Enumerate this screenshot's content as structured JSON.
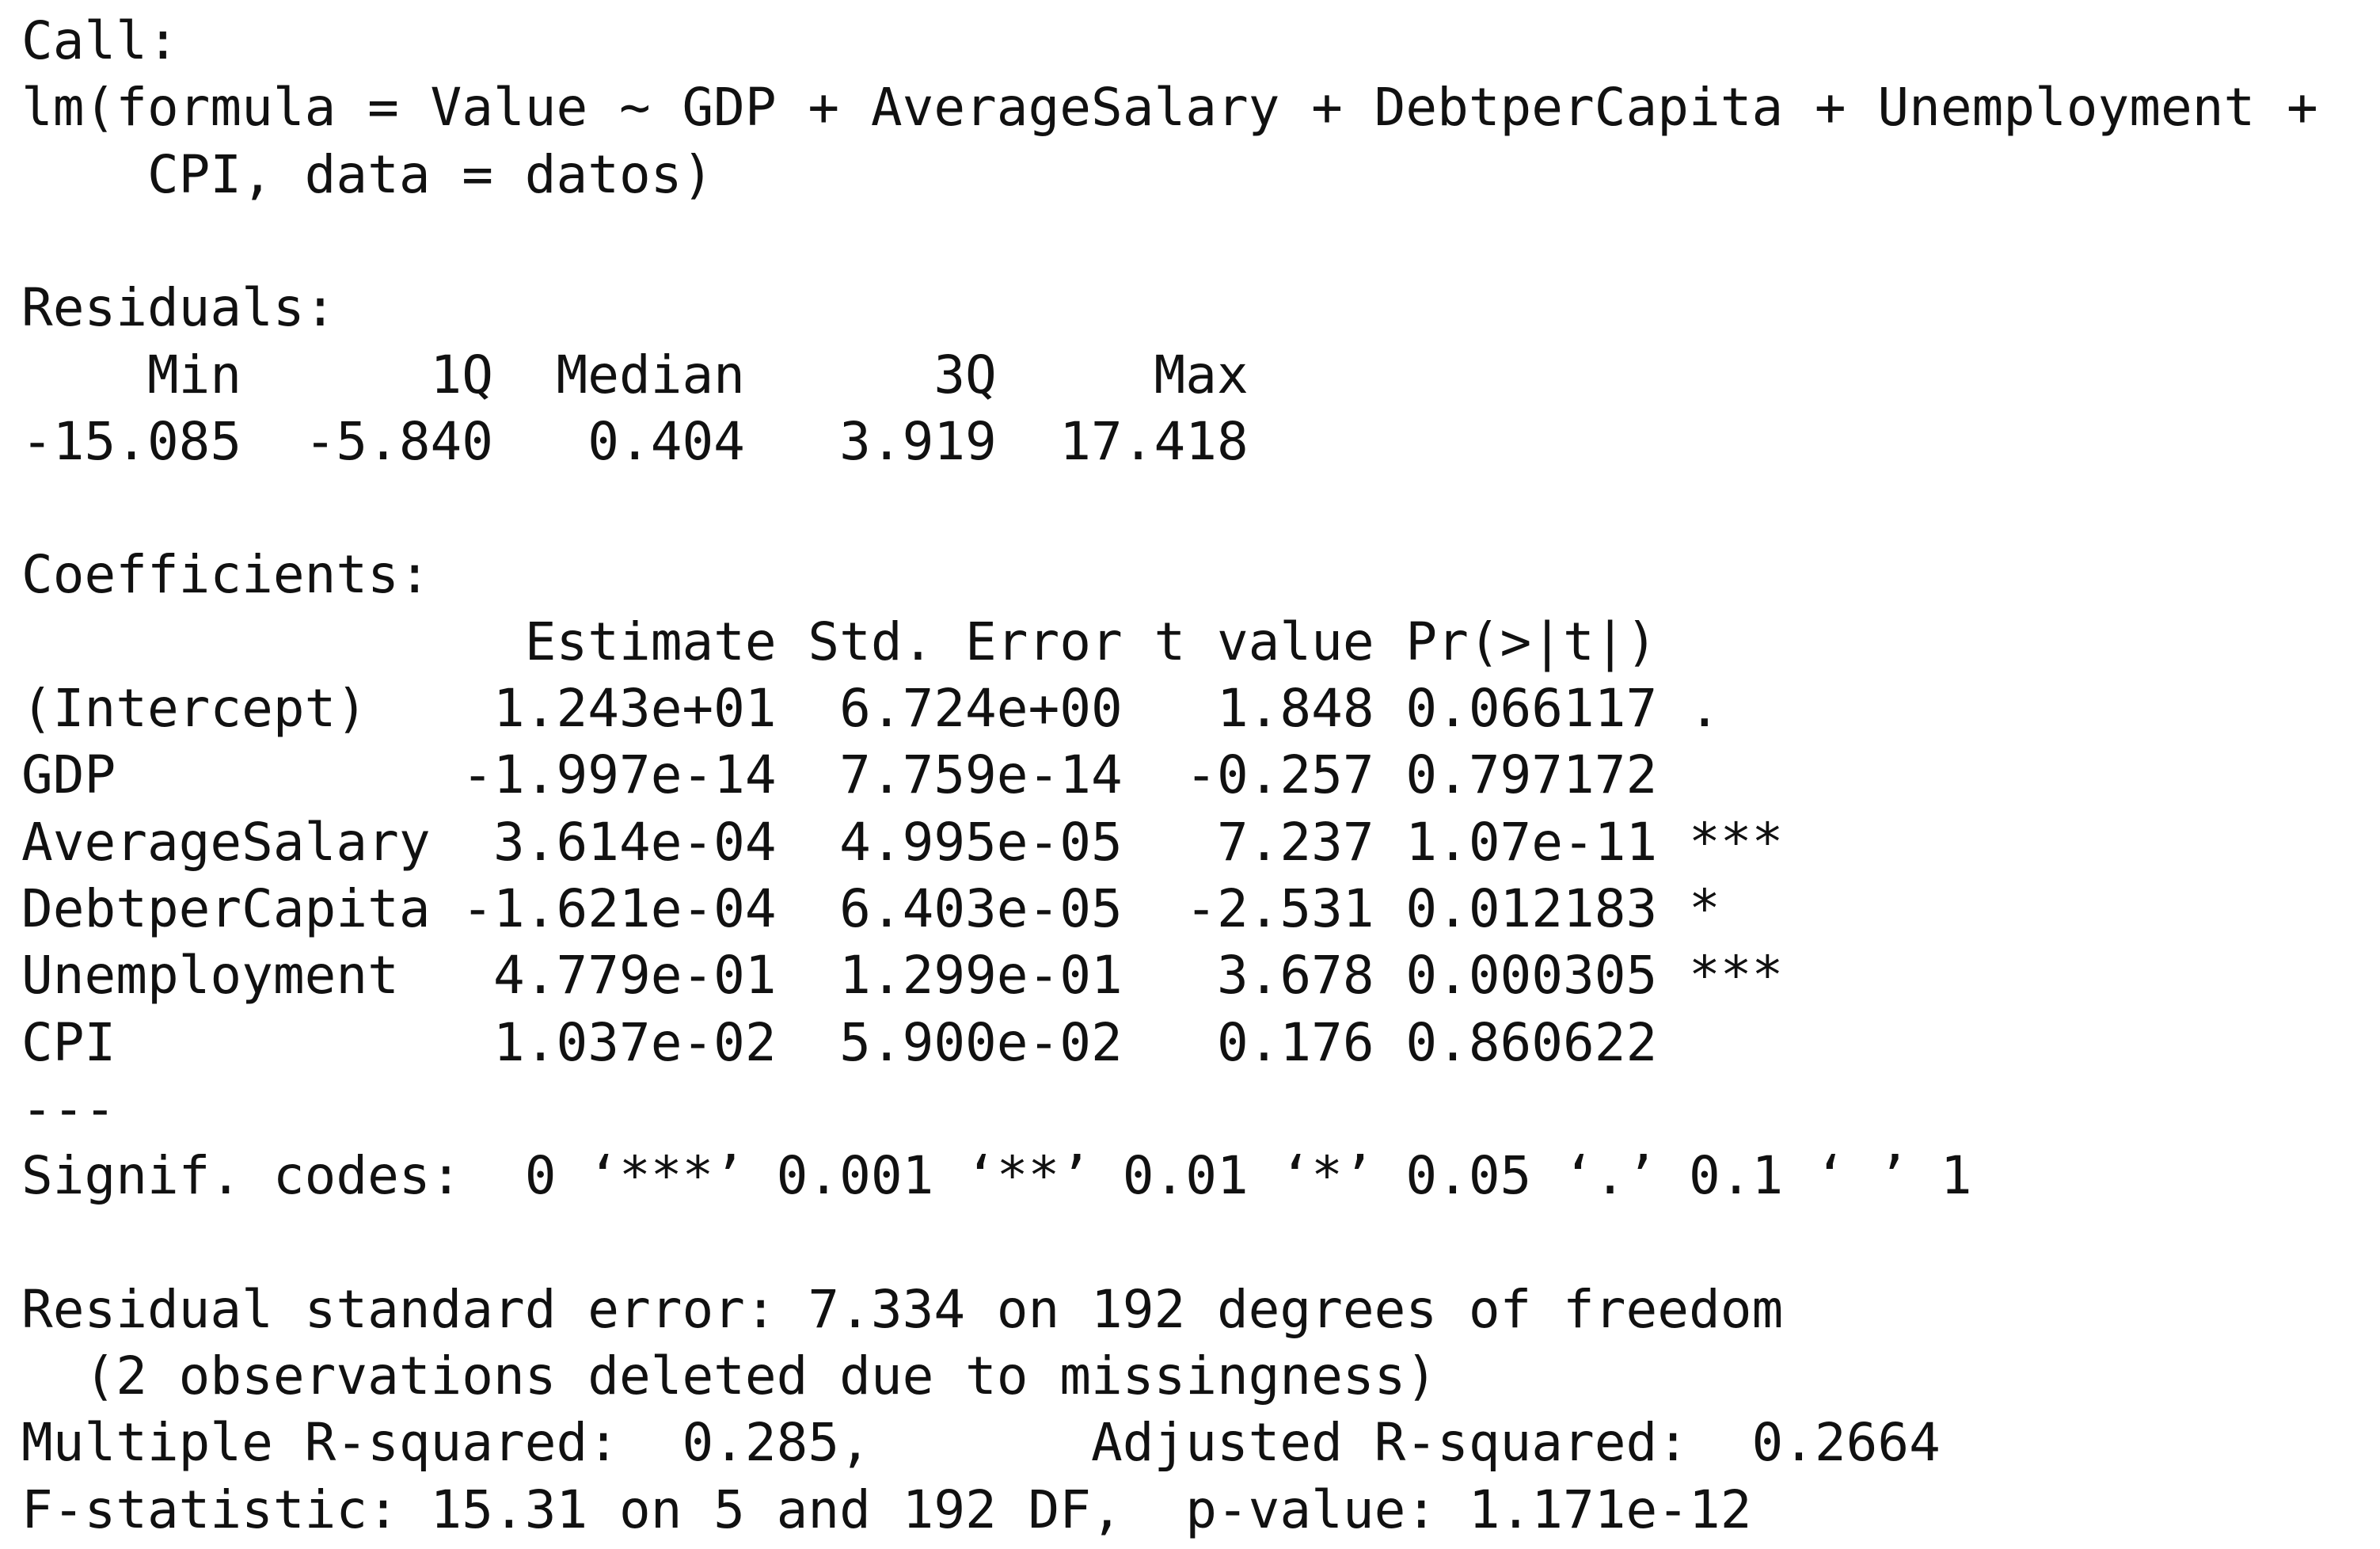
{
  "call": {
    "label": "Call:",
    "lines": [
      "lm(formula = Value ~ GDP + AverageSalary + DebtperCapita + Unemployment +",
      "CPI, data = datos)"
    ]
  },
  "residuals": {
    "label": "Residuals:",
    "headers": [
      "Min",
      "1Q",
      "Median",
      "3Q",
      "Max"
    ],
    "values": [
      "-15.085",
      "-5.840",
      "0.404",
      "3.919",
      "17.418"
    ]
  },
  "coefficients": {
    "label": "Coefficients:",
    "headers": [
      "Estimate",
      "Std. Error",
      "t value",
      "Pr(>|t|)"
    ],
    "rows": [
      [
        "(Intercept)",
        "1.243e+01",
        "6.724e+00",
        "1.848",
        "0.066117",
        "."
      ],
      [
        "GDP",
        "-1.997e-14",
        "7.759e-14",
        "-0.257",
        "0.797172"
      ],
      [
        "AverageSalary",
        "3.614e-04",
        "4.995e-05",
        "7.237",
        "1.07e-11",
        "***"
      ],
      [
        "DebtperCapita",
        "-1.621e-04",
        "6.403e-05",
        "-2.531",
        "0.012183",
        "*"
      ],
      [
        "Unemployment",
        "4.779e-01",
        "1.299e-01",
        "3.678",
        "0.000305",
        "***"
      ],
      [
        "CPI",
        "1.037e-02",
        "5.900e-02",
        "0.176",
        "0.860622"
      ]
    ]
  },
  "separator": "---",
  "signif_codes": "Signif. codes:  0 ‘***’ 0.001 ‘**’ 0.01 ‘*’ 0.05 ‘.’ 0.1 ‘ ’ 1",
  "summary": {
    "residual_standard_error": "Residual standard error: 7.334 on 192 degrees of freedom",
    "missing_note": "(2 observations deleted due to missingness)",
    "multiple_r_squared": "Multiple R-squared:  0.285,",
    "adjusted_r_squared": "Adjusted R-squared:  0.2664",
    "f_statistic": "F-statistic: 15.31 on 5 and 192 DF,  p-value: 1.171e-12"
  }
}
